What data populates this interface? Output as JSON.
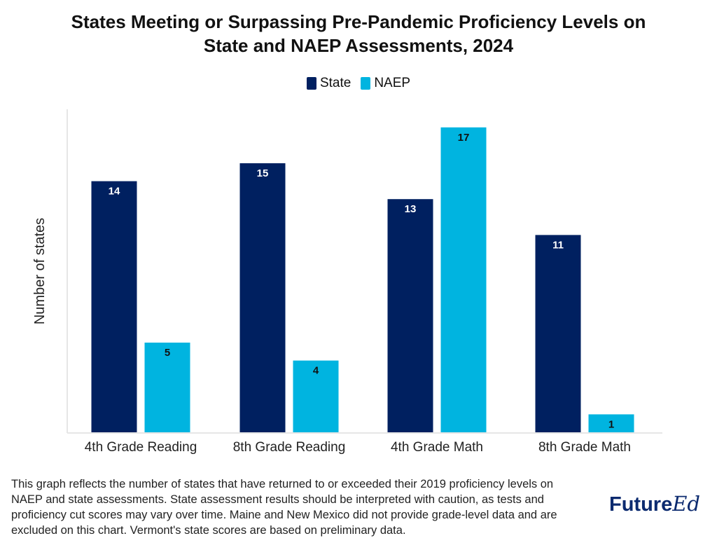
{
  "chart_data": {
    "type": "bar",
    "title": "States Meeting or Surpassing Pre-Pandemic Proficiency Levels on State and NAEP Assessments, 2024",
    "title_lines": [
      "States Meeting or Surpassing Pre-Pandemic Proficiency Levels on",
      "State and NAEP Assessments, 2024"
    ],
    "categories": [
      "4th Grade Reading",
      "8th Grade Reading",
      "4th Grade Math",
      "8th Grade Math"
    ],
    "series": [
      {
        "name": "State",
        "values": [
          14,
          15,
          13,
          11
        ],
        "color": "#002060",
        "label_color": "#ffffff"
      },
      {
        "name": "NAEP",
        "values": [
          5,
          4,
          17,
          1
        ],
        "color": "#00b4e0",
        "label_color": "#111111"
      }
    ],
    "xlabel": "",
    "ylabel": "Number of states",
    "ylim": [
      0,
      18
    ],
    "grid": false,
    "legend": "top-center"
  },
  "footnote": "This graph reflects the number of states that have returned to or exceeded their 2019 proficiency levels on NAEP and state assessments. State assessment results should be interpreted with caution, as tests and proficiency cut scores may vary over time. Maine and New Mexico did not provide grade-level data and are excluded on this chart. Vermont's state scores are based on preliminary data.",
  "logo": {
    "part1": "Future",
    "part2": "Ed"
  }
}
